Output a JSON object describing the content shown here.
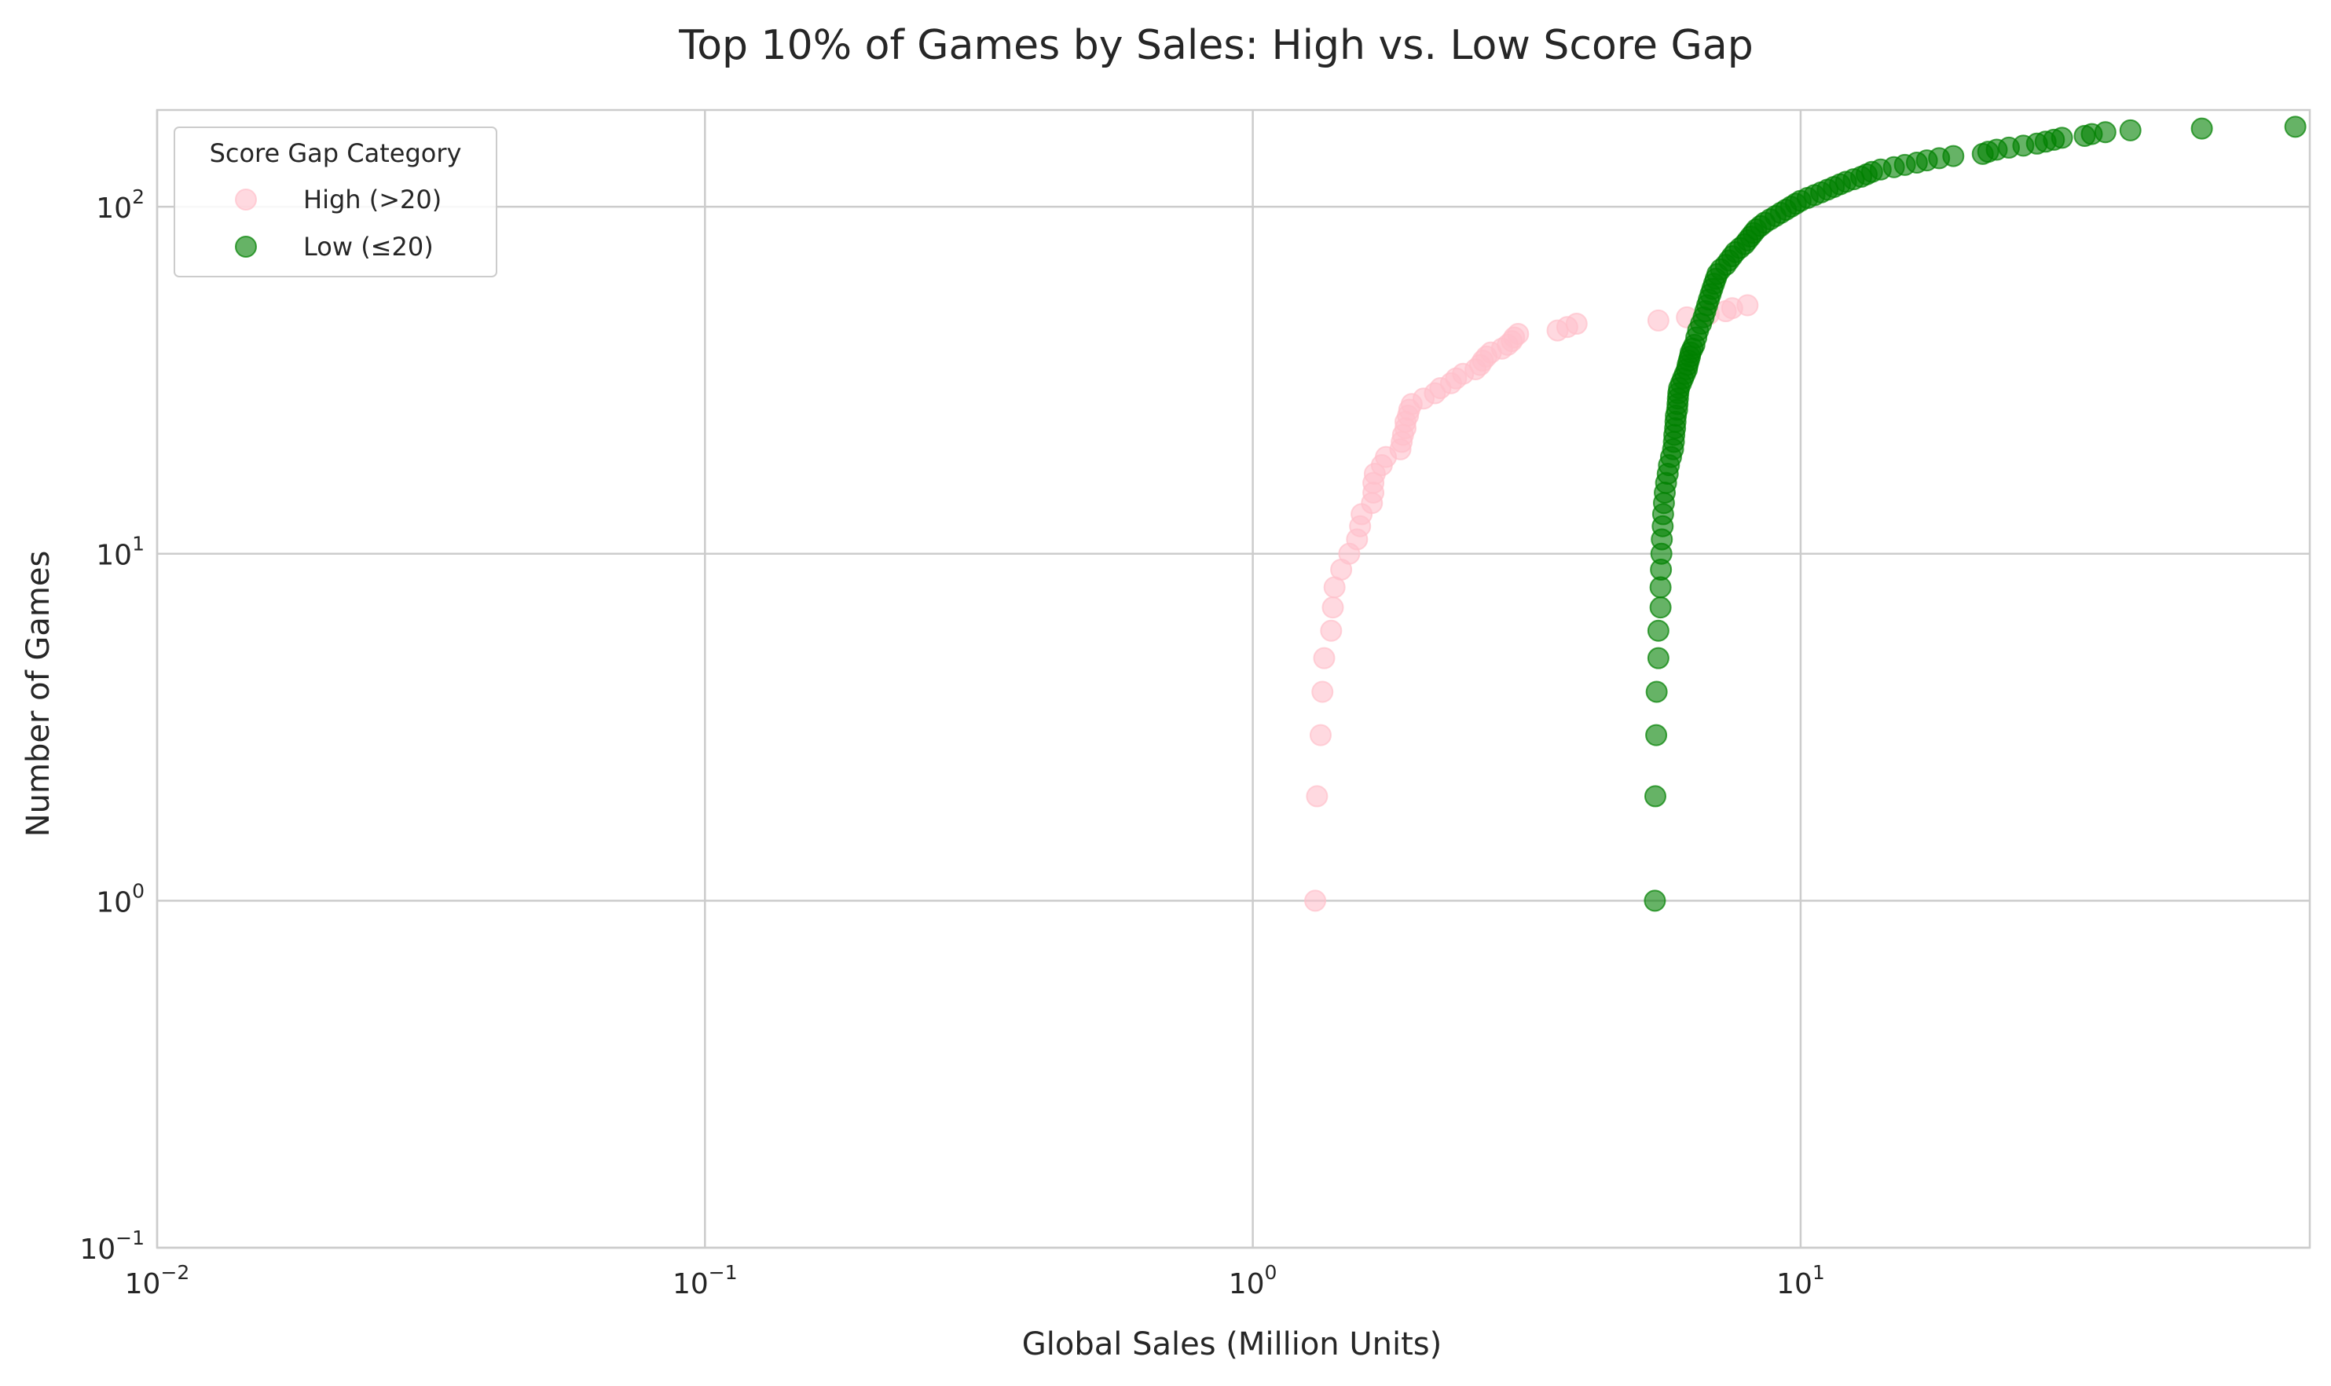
{
  "chart_data": {
    "type": "scatter",
    "title": "Top 10% of Games by Sales: High vs. Low Score Gap",
    "xlabel": "Global Sales (Million Units)",
    "ylabel": "Number of Games",
    "xscale": "log",
    "yscale": "log",
    "xlim": [
      0.01,
      85
    ],
    "ylim": [
      0.1,
      190
    ],
    "grid": true,
    "legend": {
      "title": "Score Gap Category",
      "placement": "top-left"
    },
    "xticks": [
      {
        "value": 0.01,
        "base": "10",
        "exp": "−2"
      },
      {
        "value": 0.1,
        "base": "10",
        "exp": "−1"
      },
      {
        "value": 1,
        "base": "10",
        "exp": "0"
      },
      {
        "value": 10,
        "base": "10",
        "exp": "1"
      }
    ],
    "yticks": [
      {
        "value": 0.1,
        "base": "10",
        "exp": "−1"
      },
      {
        "value": 1,
        "base": "10",
        "exp": "0"
      },
      {
        "value": 10,
        "base": "10",
        "exp": "1"
      },
      {
        "value": 100,
        "base": "10",
        "exp": "2"
      }
    ],
    "series": [
      {
        "name": "High (>20)",
        "color": "#ffc0cb",
        "alpha": 0.6,
        "points": [
          [
            1.3,
            1
          ],
          [
            1.31,
            2
          ],
          [
            1.33,
            3
          ],
          [
            1.34,
            4
          ],
          [
            1.35,
            5
          ],
          [
            1.39,
            6
          ],
          [
            1.4,
            7
          ],
          [
            1.41,
            8
          ],
          [
            1.45,
            9
          ],
          [
            1.5,
            10
          ],
          [
            1.55,
            11
          ],
          [
            1.57,
            12
          ],
          [
            1.58,
            13
          ],
          [
            1.65,
            14
          ],
          [
            1.66,
            15
          ],
          [
            1.66,
            16
          ],
          [
            1.67,
            17
          ],
          [
            1.72,
            18
          ],
          [
            1.75,
            19
          ],
          [
            1.86,
            20
          ],
          [
            1.87,
            21
          ],
          [
            1.88,
            22
          ],
          [
            1.9,
            23
          ],
          [
            1.9,
            24
          ],
          [
            1.92,
            25
          ],
          [
            1.93,
            26
          ],
          [
            1.95,
            27
          ],
          [
            2.05,
            28
          ],
          [
            2.15,
            29
          ],
          [
            2.2,
            30
          ],
          [
            2.3,
            31
          ],
          [
            2.35,
            32
          ],
          [
            2.42,
            33
          ],
          [
            2.55,
            34
          ],
          [
            2.6,
            35
          ],
          [
            2.63,
            36
          ],
          [
            2.67,
            37
          ],
          [
            2.72,
            38
          ],
          [
            2.85,
            39
          ],
          [
            2.92,
            40
          ],
          [
            2.97,
            41
          ],
          [
            3.0,
            42
          ],
          [
            3.05,
            43
          ],
          [
            3.6,
            44
          ],
          [
            3.75,
            45
          ],
          [
            3.9,
            46
          ],
          [
            5.5,
            47
          ],
          [
            6.2,
            48
          ],
          [
            6.8,
            49
          ],
          [
            7.3,
            50
          ],
          [
            7.5,
            51
          ],
          [
            8.0,
            52
          ]
        ]
      },
      {
        "name": "Low (≤20)",
        "color": "#008000",
        "alpha": 0.6,
        "points": [
          [
            5.42,
            1
          ],
          [
            5.43,
            2
          ],
          [
            5.45,
            3
          ],
          [
            5.46,
            4
          ],
          [
            5.5,
            5
          ],
          [
            5.5,
            6
          ],
          [
            5.55,
            7
          ],
          [
            5.55,
            8
          ],
          [
            5.56,
            9
          ],
          [
            5.57,
            10
          ],
          [
            5.58,
            11
          ],
          [
            5.6,
            12
          ],
          [
            5.61,
            13
          ],
          [
            5.63,
            14
          ],
          [
            5.65,
            15
          ],
          [
            5.68,
            16
          ],
          [
            5.72,
            17
          ],
          [
            5.75,
            18
          ],
          [
            5.8,
            19
          ],
          [
            5.85,
            20
          ],
          [
            5.87,
            21
          ],
          [
            5.88,
            22
          ],
          [
            5.9,
            23
          ],
          [
            5.91,
            24
          ],
          [
            5.92,
            25
          ],
          [
            5.95,
            26
          ],
          [
            5.96,
            27
          ],
          [
            5.97,
            28
          ],
          [
            5.98,
            29
          ],
          [
            6.0,
            30
          ],
          [
            6.05,
            31
          ],
          [
            6.1,
            32
          ],
          [
            6.15,
            33
          ],
          [
            6.2,
            34
          ],
          [
            6.22,
            35
          ],
          [
            6.25,
            36
          ],
          [
            6.28,
            37
          ],
          [
            6.3,
            38
          ],
          [
            6.35,
            39
          ],
          [
            6.4,
            40
          ],
          [
            6.45,
            42
          ],
          [
            6.5,
            44
          ],
          [
            6.58,
            46
          ],
          [
            6.65,
            48
          ],
          [
            6.7,
            50
          ],
          [
            6.75,
            52
          ],
          [
            6.8,
            54
          ],
          [
            6.85,
            56
          ],
          [
            6.9,
            58
          ],
          [
            6.95,
            60
          ],
          [
            7.0,
            62
          ],
          [
            7.05,
            64
          ],
          [
            7.15,
            66
          ],
          [
            7.3,
            68
          ],
          [
            7.4,
            70
          ],
          [
            7.5,
            72
          ],
          [
            7.6,
            74
          ],
          [
            7.75,
            76
          ],
          [
            7.9,
            78
          ],
          [
            8.0,
            80
          ],
          [
            8.1,
            82
          ],
          [
            8.2,
            84
          ],
          [
            8.3,
            86
          ],
          [
            8.45,
            88
          ],
          [
            8.6,
            90
          ],
          [
            8.8,
            92
          ],
          [
            9.0,
            94
          ],
          [
            9.2,
            96
          ],
          [
            9.4,
            98
          ],
          [
            9.6,
            100
          ],
          [
            9.8,
            102
          ],
          [
            10.0,
            104
          ],
          [
            10.3,
            106
          ],
          [
            10.6,
            108
          ],
          [
            10.9,
            110
          ],
          [
            11.2,
            112
          ],
          [
            11.5,
            114
          ],
          [
            11.8,
            116
          ],
          [
            12.1,
            118
          ],
          [
            12.5,
            120
          ],
          [
            12.9,
            122
          ],
          [
            13.2,
            124
          ],
          [
            13.5,
            126
          ],
          [
            14.0,
            128
          ],
          [
            14.8,
            130
          ],
          [
            15.5,
            132
          ],
          [
            16.3,
            134
          ],
          [
            17.0,
            136
          ],
          [
            17.9,
            138
          ],
          [
            19.0,
            140
          ],
          [
            21.5,
            142
          ],
          [
            22.0,
            144
          ],
          [
            22.8,
            146
          ],
          [
            24.0,
            148
          ],
          [
            25.5,
            150
          ],
          [
            27.0,
            152
          ],
          [
            28.0,
            154
          ],
          [
            29.0,
            156
          ],
          [
            30.0,
            158
          ],
          [
            33.0,
            160
          ],
          [
            34.0,
            162
          ],
          [
            36.0,
            164
          ],
          [
            40.0,
            166
          ],
          [
            54.0,
            168
          ],
          [
            80.0,
            170
          ]
        ]
      }
    ]
  }
}
